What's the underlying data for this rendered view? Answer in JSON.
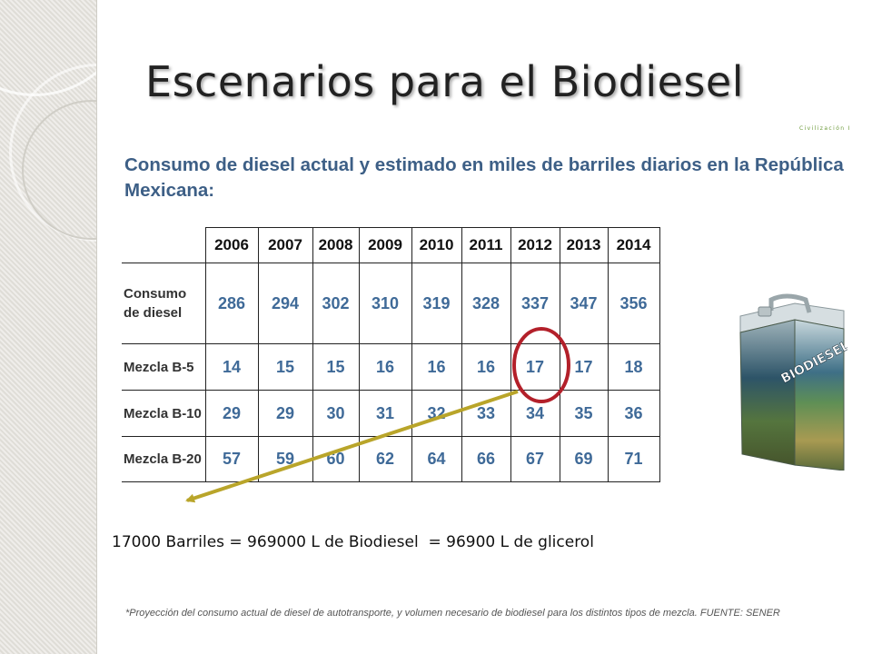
{
  "slide": {
    "title": "Escenarios para el Biodiesel",
    "corner_mark": "Civilización I",
    "heading": "Consumo de diesel actual y estimado en miles de barriles diarios en la República Mexicana:",
    "equation": "17000 Barriles = 969000 L de Biodiesel  = 96900 L de glicerol",
    "footnote": "*Proyección del  consumo actual de diesel de autotransporte, y volumen necesario de biodiesel para los distintos tipos de mezcla. FUENTE: SENER",
    "can_label": "BIODIESEL"
  },
  "table": {
    "years": [
      "2006",
      "2007",
      "2008",
      "2009",
      "2010",
      "2011",
      "2012",
      "2013",
      "2014"
    ],
    "rows": [
      {
        "label": "Consumo de diesel",
        "values": [
          "286",
          "294",
          "302",
          "310",
          "319",
          "328",
          "337",
          "347",
          "356"
        ]
      },
      {
        "label": "Mezcla B-5",
        "values": [
          "14",
          "15",
          "15",
          "16",
          "16",
          "16",
          "17",
          "17",
          "18"
        ]
      },
      {
        "label": "Mezcla B-10",
        "values": [
          "29",
          "29",
          "30",
          "31",
          "32",
          "33",
          "34",
          "35",
          "36"
        ]
      },
      {
        "label": "Mezcla B-20",
        "values": [
          "57",
          "59",
          "60",
          "62",
          "64",
          "66",
          "67",
          "69",
          "71"
        ]
      }
    ],
    "highlight": {
      "row": "Mezcla B-5",
      "year": "2012",
      "value": "17"
    }
  },
  "colors": {
    "heading": "#3d5f86",
    "cell_values": "#3f6a98",
    "highlight_circle": "#b3202a",
    "arrow": "#b9a52a"
  }
}
